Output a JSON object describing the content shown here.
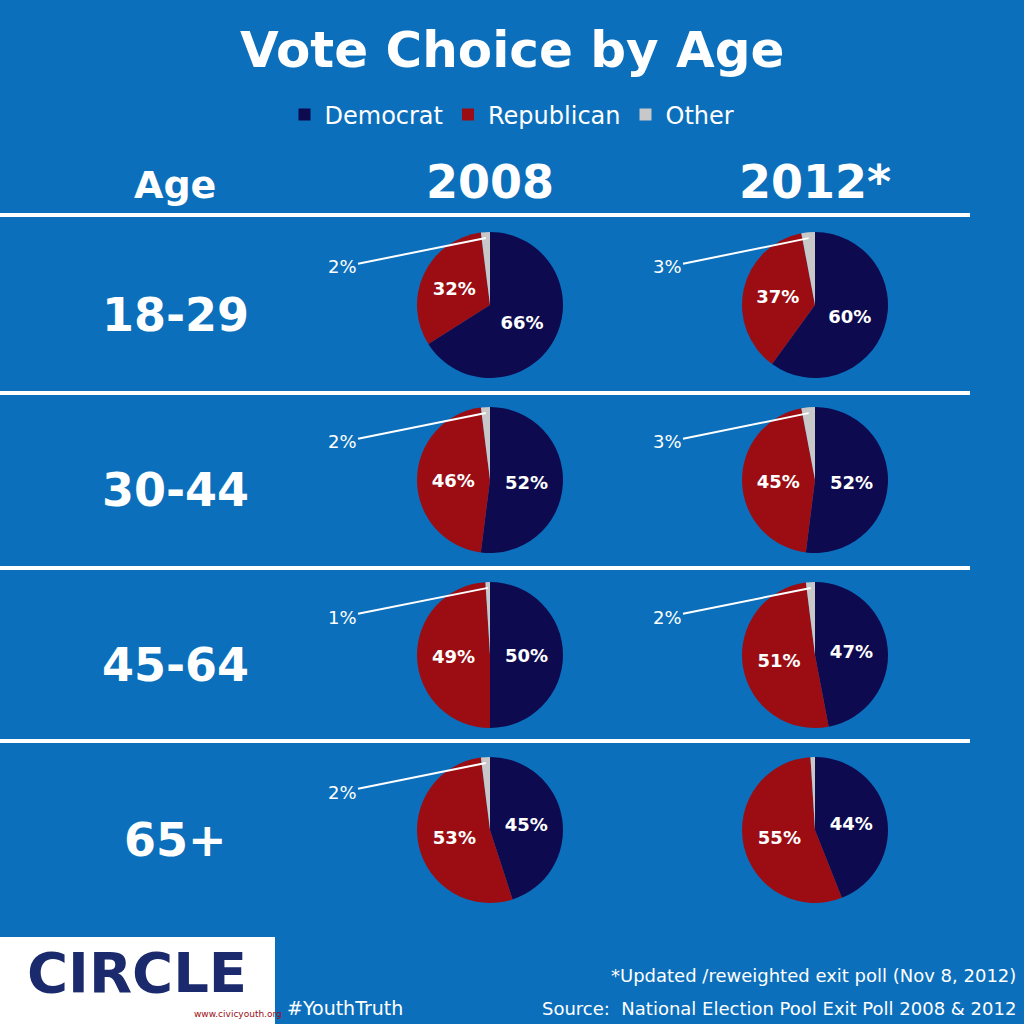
{
  "title": "Vote Choice by Age",
  "table": {
    "header": "Age",
    "columns": [
      "2008",
      "2012*"
    ],
    "rows": [
      "18-29",
      "30-44",
      "45-64",
      "65+"
    ]
  },
  "footer": {
    "logo": "CIRCLE",
    "url": "www.civicyouth.org",
    "hashtag": "#YouthTruth",
    "note": "*Updated /reweighted exit poll (Nov 8, 2012)",
    "source": "Source:  National Election Pool Exit Poll 2008 & 2012"
  },
  "chart_data": [
    {
      "type": "pie",
      "categories": [
        "Democrat",
        "Republican",
        "Other"
      ],
      "values": [
        66,
        32,
        2
      ],
      "value_labels": [
        "66%",
        "32%",
        "2%"
      ],
      "colors": [
        "#0d0a4f",
        "#9b0d13",
        "#c8c8c8"
      ],
      "data_labels": true,
      "legend": "top"
    },
    {
      "type": "pie",
      "categories": [
        "Democrat",
        "Republican",
        "Other"
      ],
      "values": [
        60,
        37,
        3
      ],
      "value_labels": [
        "60%",
        "37%",
        "3%"
      ],
      "colors": [
        "#0d0a4f",
        "#9b0d13",
        "#c8c8c8"
      ],
      "data_labels": true,
      "legend": "top"
    },
    {
      "type": "pie",
      "categories": [
        "Democrat",
        "Republican",
        "Other"
      ],
      "values": [
        52,
        46,
        2
      ],
      "value_labels": [
        "52%",
        "46%",
        "2%"
      ],
      "colors": [
        "#0d0a4f",
        "#9b0d13",
        "#c8c8c8"
      ],
      "data_labels": true,
      "legend": "top"
    },
    {
      "type": "pie",
      "categories": [
        "Democrat",
        "Republican",
        "Other"
      ],
      "values": [
        52,
        45,
        3
      ],
      "value_labels": [
        "52%",
        "45%",
        "3%"
      ],
      "colors": [
        "#0d0a4f",
        "#9b0d13",
        "#c8c8c8"
      ],
      "data_labels": true,
      "legend": "top"
    },
    {
      "type": "pie",
      "categories": [
        "Democrat",
        "Republican",
        "Other"
      ],
      "values": [
        50,
        49,
        1
      ],
      "value_labels": [
        "50%",
        "49%",
        "1%"
      ],
      "colors": [
        "#0d0a4f",
        "#9b0d13",
        "#c8c8c8"
      ],
      "data_labels": true,
      "legend": "top"
    },
    {
      "type": "pie",
      "categories": [
        "Democrat",
        "Republican",
        "Other"
      ],
      "values": [
        47,
        51,
        2
      ],
      "value_labels": [
        "47%",
        "51%",
        "2%"
      ],
      "colors": [
        "#0d0a4f",
        "#9b0d13",
        "#c8c8c8"
      ],
      "data_labels": true,
      "legend": "top"
    },
    {
      "type": "pie",
      "categories": [
        "Democrat",
        "Republican",
        "Other"
      ],
      "values": [
        45,
        53,
        2
      ],
      "value_labels": [
        "45%",
        "53%",
        "2%"
      ],
      "colors": [
        "#0d0a4f",
        "#9b0d13",
        "#c8c8c8"
      ],
      "data_labels": true,
      "legend": "top"
    },
    {
      "type": "pie",
      "categories": [
        "Democrat",
        "Republican",
        "Other"
      ],
      "values": [
        44,
        55,
        1
      ],
      "value_labels": [
        "44%",
        "55%",
        null
      ],
      "colors": [
        "#0d0a4f",
        "#9b0d13",
        "#c8c8c8"
      ],
      "data_labels": true,
      "legend": "top"
    }
  ]
}
